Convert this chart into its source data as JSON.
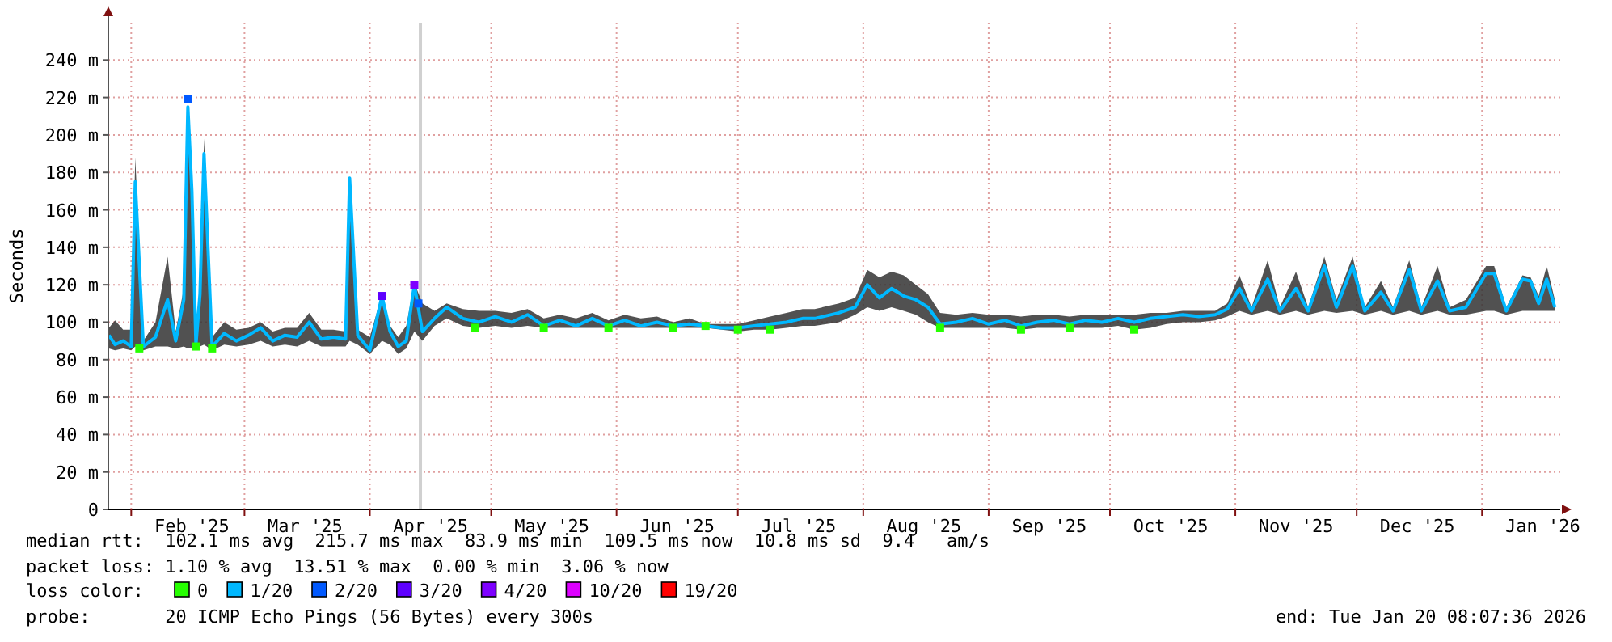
{
  "chart_data": {
    "type": "line",
    "ylabel": "Seconds",
    "xlim": [
      "2025-01-26T08:07",
      "2026-01-20T08:07"
    ],
    "xticks": [
      {
        "value": "2025-02-01",
        "label": null
      },
      {
        "value": "2025-03-01",
        "label": null
      },
      {
        "value": "2025-04-01",
        "label": null
      },
      {
        "value": "2025-05-01",
        "label": null
      },
      {
        "value": "2025-06-01",
        "label": null
      },
      {
        "value": "2025-07-01",
        "label": null
      },
      {
        "value": "2025-08-01",
        "label": null
      },
      {
        "value": "2025-09-01",
        "label": null
      },
      {
        "value": "2025-10-01",
        "label": null
      },
      {
        "value": "2025-11-01",
        "label": null
      },
      {
        "value": "2025-12-01",
        "label": null
      },
      {
        "value": "2026-01-01",
        "label": null
      },
      {
        "value": "2025-02-16",
        "label": "Feb '25"
      },
      {
        "value": "2025-03-16",
        "label": "Mar '25"
      },
      {
        "value": "2025-04-16",
        "label": "Apr '25"
      },
      {
        "value": "2025-05-16",
        "label": "May '25"
      },
      {
        "value": "2025-06-16",
        "label": "Jun '25"
      },
      {
        "value": "2025-07-16",
        "label": "Jul '25"
      },
      {
        "value": "2025-08-16",
        "label": "Aug '25"
      },
      {
        "value": "2025-09-16",
        "label": "Sep '25"
      },
      {
        "value": "2025-10-16",
        "label": "Oct '25"
      },
      {
        "value": "2025-11-16",
        "label": "Nov '25"
      },
      {
        "value": "2025-12-16",
        "label": "Dec '25"
      },
      {
        "value": "2026-01-16",
        "label": "Jan '26"
      }
    ],
    "ylim": [
      0,
      260
    ],
    "yticks": [
      {
        "value": 0,
        "label": "0"
      },
      {
        "value": 20,
        "label": "20 m"
      },
      {
        "value": 40,
        "label": "40 m"
      },
      {
        "value": 60,
        "label": "60 m"
      },
      {
        "value": 80,
        "label": "80 m"
      },
      {
        "value": 100,
        "label": "100 m"
      },
      {
        "value": 120,
        "label": "120 m"
      },
      {
        "value": 140,
        "label": "140 m"
      },
      {
        "value": 160,
        "label": "160 m"
      },
      {
        "value": 180,
        "label": "180 m"
      },
      {
        "value": 200,
        "label": "200 m"
      },
      {
        "value": 220,
        "label": "220 m"
      },
      {
        "value": 240,
        "label": "240 m"
      }
    ],
    "grid": true,
    "legend": "bottom",
    "legend_title": "loss color:",
    "ref_lines": [
      {
        "axis": "x",
        "value": "2025-04-13T12:00",
        "label": null,
        "color": "#d0d0d0"
      }
    ],
    "annotations": [
      "median rtt:  102.1 ms avg  215.7 ms max  83.9 ms min  109.5 ms now  10.8 ms sd  9.4   am/s",
      "packet loss: 1.10 % avg  13.51 % max  0.00 % min  3.06 % now",
      "probe:       20 ICMP Echo Pings (56 Bytes) every 300s",
      "end: Tue Jan 20 08:07:36 2026"
    ],
    "series": [
      {
        "name": "0",
        "type": "scatter",
        "marker": "square",
        "color": "#26ff00",
        "x": [
          "2025-02-03",
          "2025-02-17",
          "2025-02-21",
          "2025-04-27",
          "2025-05-14",
          "2025-05-30",
          "2025-06-15",
          "2025-06-23",
          "2025-07-01",
          "2025-07-09",
          "2025-08-20",
          "2025-09-09",
          "2025-09-21",
          "2025-10-07"
        ],
        "values": [
          86,
          87,
          86,
          97,
          97,
          97,
          97,
          98,
          96,
          96,
          97,
          96,
          97,
          96
        ]
      },
      {
        "name": "1/20",
        "color": "#00b8ff",
        "x": [
          "2025-01-26T12:00",
          "2025-01-28",
          "2025-01-30",
          "2025-02-01",
          "2025-02-02",
          "2025-02-04",
          "2025-02-07",
          "2025-02-10",
          "2025-02-12",
          "2025-02-14",
          "2025-02-15",
          "2025-02-16",
          "2025-02-17",
          "2025-02-18",
          "2025-02-19",
          "2025-02-21",
          "2025-02-24",
          "2025-02-27",
          "2025-03-02",
          "2025-03-05",
          "2025-03-08",
          "2025-03-11",
          "2025-03-14",
          "2025-03-17",
          "2025-03-20",
          "2025-03-23",
          "2025-03-26",
          "2025-03-27",
          "2025-03-29",
          "2025-04-01",
          "2025-04-04",
          "2025-04-06",
          "2025-04-08",
          "2025-04-10",
          "2025-04-12",
          "2025-04-14",
          "2025-04-17",
          "2025-04-20",
          "2025-04-24",
          "2025-04-28",
          "2025-05-02",
          "2025-05-06",
          "2025-05-10",
          "2025-05-14",
          "2025-05-18",
          "2025-05-22",
          "2025-05-26",
          "2025-05-30",
          "2025-06-03",
          "2025-06-07",
          "2025-06-11",
          "2025-06-15",
          "2025-06-19",
          "2025-06-23",
          "2025-06-27",
          "2025-07-01",
          "2025-07-05",
          "2025-07-09",
          "2025-07-13",
          "2025-07-17",
          "2025-07-20",
          "2025-07-26",
          "2025-07-30",
          "2025-08-02",
          "2025-08-05",
          "2025-08-08",
          "2025-08-11",
          "2025-08-14",
          "2025-08-17",
          "2025-08-20",
          "2025-08-24",
          "2025-08-28",
          "2025-09-01",
          "2025-09-05",
          "2025-09-09",
          "2025-09-13",
          "2025-09-17",
          "2025-09-21",
          "2025-09-25",
          "2025-09-29",
          "2025-10-03",
          "2025-10-07",
          "2025-10-11",
          "2025-10-15",
          "2025-10-19",
          "2025-10-23",
          "2025-10-27",
          "2025-10-30",
          "2025-11-02",
          "2025-11-05",
          "2025-11-09",
          "2025-11-12",
          "2025-11-16",
          "2025-11-19",
          "2025-11-23",
          "2025-11-26",
          "2025-11-30",
          "2025-12-03",
          "2025-12-07",
          "2025-12-10",
          "2025-12-14",
          "2025-12-17",
          "2025-12-21",
          "2025-12-24",
          "2025-12-28",
          "2026-01-02",
          "2026-01-04",
          "2026-01-07",
          "2026-01-11",
          "2026-01-13",
          "2026-01-15",
          "2026-01-17",
          "2026-01-19"
        ],
        "values": [
          93,
          88,
          90,
          87,
          175,
          87,
          92,
          112,
          90,
          112,
          215,
          170,
          88,
          115,
          190,
          87,
          94,
          90,
          93,
          97,
          90,
          93,
          92,
          100,
          91,
          92,
          91,
          177,
          93,
          85,
          114,
          95,
          87,
          90,
          120,
          95,
          102,
          108,
          102,
          100,
          103,
          100,
          104,
          98,
          101,
          98,
          102,
          98,
          101,
          98,
          100,
          98,
          99,
          98,
          97,
          97,
          98,
          99,
          100,
          102,
          102,
          105,
          108,
          120,
          113,
          118,
          114,
          112,
          108,
          99,
          100,
          102,
          99,
          101,
          98,
          100,
          101,
          99,
          101,
          100,
          102,
          100,
          102,
          103,
          104,
          103,
          104,
          107,
          118,
          106,
          123,
          106,
          118,
          106,
          130,
          108,
          130,
          106,
          116,
          106,
          128,
          106,
          122,
          106,
          108,
          126,
          126,
          106,
          123,
          122,
          110,
          123,
          108
        ],
        "lower": [
          86,
          85,
          86,
          85,
          87,
          85,
          87,
          87,
          86,
          87,
          86,
          86,
          85,
          87,
          88,
          85,
          88,
          87,
          88,
          90,
          87,
          88,
          87,
          90,
          87,
          87,
          87,
          90,
          88,
          83,
          90,
          88,
          83,
          86,
          95,
          90,
          98,
          102,
          98,
          97,
          98,
          97,
          98,
          97,
          97,
          97,
          97,
          97,
          97,
          97,
          97,
          97,
          97,
          97,
          96,
          95,
          96,
          96,
          97,
          98,
          98,
          100,
          104,
          108,
          106,
          108,
          106,
          104,
          100,
          97,
          97,
          97,
          97,
          97,
          96,
          97,
          97,
          97,
          97,
          97,
          98,
          96,
          97,
          99,
          100,
          100,
          101,
          103,
          106,
          104,
          106,
          104,
          106,
          104,
          106,
          105,
          106,
          104,
          106,
          104,
          106,
          104,
          106,
          104,
          104,
          106,
          106,
          104,
          106,
          106,
          106,
          106,
          106
        ],
        "upper": [
          97,
          101,
          96,
          96,
          188,
          90,
          100,
          135,
          95,
          118,
          219,
          180,
          92,
          118,
          198,
          92,
          100,
          96,
          97,
          100,
          95,
          97,
          97,
          105,
          96,
          96,
          95,
          178,
          96,
          92,
          115,
          98,
          92,
          98,
          121,
          110,
          106,
          110,
          107,
          106,
          106,
          105,
          107,
          102,
          104,
          102,
          105,
          101,
          104,
          102,
          103,
          100,
          102,
          99,
          99,
          99,
          101,
          103,
          105,
          107,
          107,
          110,
          113,
          128,
          124,
          127,
          125,
          120,
          115,
          105,
          104,
          105,
          104,
          104,
          103,
          104,
          104,
          103,
          104,
          104,
          104,
          104,
          105,
          105,
          106,
          106,
          106,
          110,
          125,
          108,
          133,
          108,
          127,
          108,
          135,
          112,
          135,
          108,
          122,
          108,
          133,
          108,
          130,
          108,
          112,
          130,
          130,
          108,
          125,
          124,
          114,
          130,
          112
        ]
      },
      {
        "name": "2/20",
        "type": "scatter",
        "marker": "square",
        "color": "#0059ff",
        "x": [
          "2025-02-15",
          "2025-04-13"
        ],
        "values": [
          219,
          110
        ]
      },
      {
        "name": "3/20",
        "type": "scatter",
        "marker": "square",
        "color": "#5e00ff",
        "x": [
          "2025-04-04"
        ],
        "values": [
          114
        ]
      },
      {
        "name": "4/20",
        "type": "scatter",
        "marker": "square",
        "color": "#7e00ff",
        "x": [
          "2025-04-12"
        ],
        "values": [
          120
        ]
      },
      {
        "name": "10/20",
        "type": "scatter",
        "marker": "square",
        "color": "#dd00ff"
      },
      {
        "name": "19/20",
        "type": "scatter",
        "marker": "square",
        "color": "#ff0000"
      }
    ]
  }
}
